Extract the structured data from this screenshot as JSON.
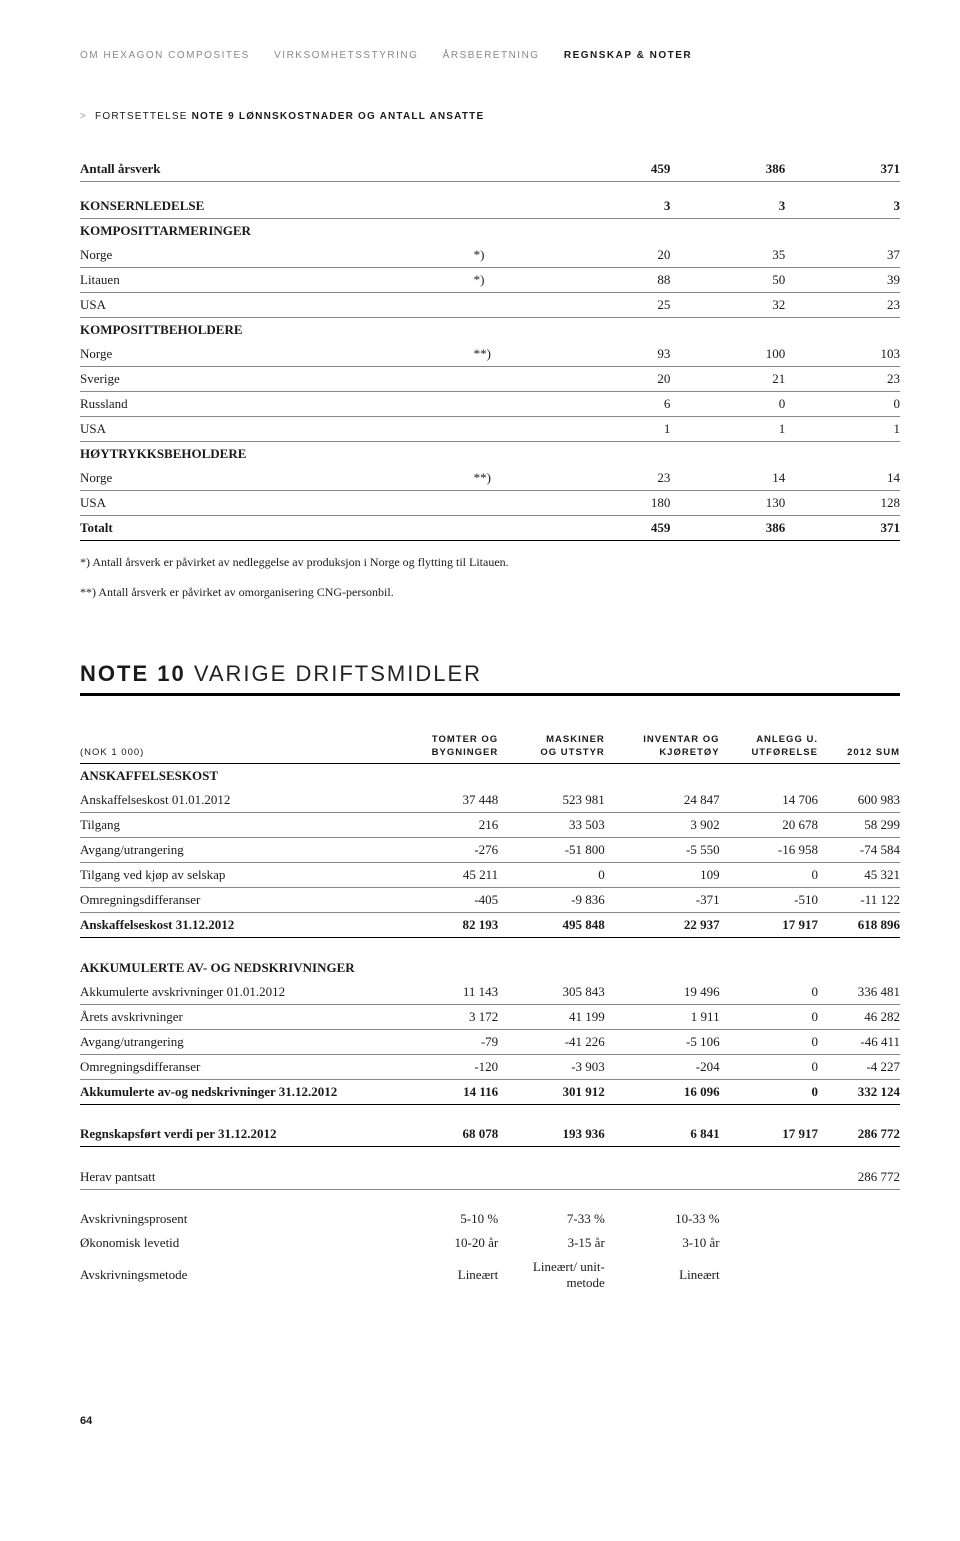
{
  "nav": {
    "items": [
      "OM HEXAGON COMPOSITES",
      "VIRKSOMHETSSTYRING",
      "ÅRSBERETNING",
      "REGNSKAP & NOTER"
    ],
    "active_index": 3
  },
  "continuation": {
    "caret": ">",
    "prefix": "FORTSETTELSE",
    "title": "NOTE 9 LØNNSKOSTNADER OG ANTALL ANSATTE"
  },
  "table1": {
    "rows": [
      {
        "label": "Antall årsverk",
        "mark": "",
        "c1": "459",
        "c2": "386",
        "c3": "371",
        "bold": true
      },
      {
        "gap": true
      },
      {
        "label": "KONSERNLEDELSE",
        "mark": "",
        "c1": "3",
        "c2": "3",
        "c3": "3",
        "bold": true
      },
      {
        "label": "KOMPOSITTARMERINGER",
        "section": true
      },
      {
        "label": "Norge",
        "mark": "*)",
        "c1": "20",
        "c2": "35",
        "c3": "37"
      },
      {
        "label": "Litauen",
        "mark": "*)",
        "c1": "88",
        "c2": "50",
        "c3": "39"
      },
      {
        "label": "USA",
        "mark": "",
        "c1": "25",
        "c2": "32",
        "c3": "23"
      },
      {
        "label": "KOMPOSITTBEHOLDERE",
        "section": true
      },
      {
        "label": "Norge",
        "mark": "**)",
        "c1": "93",
        "c2": "100",
        "c3": "103"
      },
      {
        "label": "Sverige",
        "mark": "",
        "c1": "20",
        "c2": "21",
        "c3": "23"
      },
      {
        "label": "Russland",
        "mark": "",
        "c1": "6",
        "c2": "0",
        "c3": "0"
      },
      {
        "label": "USA",
        "mark": "",
        "c1": "1",
        "c2": "1",
        "c3": "1"
      },
      {
        "label": "HØYTRYKKSBEHOLDERE",
        "section": true
      },
      {
        "label": "Norge",
        "mark": "**)",
        "c1": "23",
        "c2": "14",
        "c3": "14"
      },
      {
        "label": "USA",
        "mark": "",
        "c1": "180",
        "c2": "130",
        "c3": "128"
      },
      {
        "label": "Totalt",
        "mark": "",
        "c1": "459",
        "c2": "386",
        "c3": "371",
        "bold": true,
        "thick": true
      }
    ]
  },
  "footnotes": [
    "*) Antall årsverk er påvirket av nedleggelse av produksjon i Norge og flytting til Litauen.",
    "**) Antall årsverk er påvirket av omorganisering CNG-personbil."
  ],
  "note10": {
    "heading_bold": "NOTE 10",
    "heading_light": "VARIGE DRIFTSMIDLER",
    "unit_label": "(NOK 1 000)",
    "headers": [
      "TOMTER OG BYGNINGER",
      "MASKINER OG UTSTYR",
      "INVENTAR OG KJØRETØY",
      "ANLEGG U. UTFØRELSE",
      "2012 SUM"
    ],
    "rows": [
      {
        "label": "ANSKAFFELSESKOST",
        "section": true
      },
      {
        "label": "Anskaffelseskost 01.01.2012",
        "v": [
          "37 448",
          "523 981",
          "24 847",
          "14 706",
          "600 983"
        ]
      },
      {
        "label": "Tilgang",
        "v": [
          "216",
          "33 503",
          "3 902",
          "20 678",
          "58 299"
        ]
      },
      {
        "label": "Avgang/utrangering",
        "v": [
          "-276",
          "-51 800",
          "-5 550",
          "-16 958",
          "-74 584"
        ]
      },
      {
        "label": "Tilgang ved kjøp av selskap",
        "v": [
          "45 211",
          "0",
          "109",
          "0",
          "45 321"
        ]
      },
      {
        "label": "Omregningsdifferanser",
        "v": [
          "-405",
          "-9 836",
          "-371",
          "-510",
          "-11 122"
        ]
      },
      {
        "label": "Anskaffelseskost 31.12.2012",
        "v": [
          "82 193",
          "495 848",
          "22 937",
          "17 917",
          "618 896"
        ],
        "thick": true
      },
      {
        "gap": true
      },
      {
        "label": "AKKUMULERTE AV- OG NEDSKRIVNINGER",
        "section": true
      },
      {
        "label": "Akkumulerte avskrivninger 01.01.2012",
        "v": [
          "11 143",
          "305 843",
          "19 496",
          "0",
          "336 481"
        ]
      },
      {
        "label": "Årets avskrivninger",
        "v": [
          "3 172",
          "41 199",
          "1 911",
          "0",
          "46 282"
        ]
      },
      {
        "label": "Avgang/utrangering",
        "v": [
          "-79",
          "-41 226",
          "-5 106",
          "0",
          "-46 411"
        ]
      },
      {
        "label": "Omregningsdifferanser",
        "v": [
          "-120",
          "-3 903",
          "-204",
          "0",
          "-4 227"
        ]
      },
      {
        "label": "Akkumulerte av-og nedskrivninger 31.12.2012",
        "v": [
          "14 116",
          "301 912",
          "16 096",
          "0",
          "332 124"
        ],
        "thick": true
      },
      {
        "gap": true
      },
      {
        "label": "Regnskapsført verdi per 31.12.2012",
        "v": [
          "68 078",
          "193 936",
          "6 841",
          "17 917",
          "286 772"
        ],
        "thick": true
      },
      {
        "gap": true
      },
      {
        "label": "Herav pantsatt",
        "v": [
          "",
          "",
          "",
          "",
          "286 772"
        ]
      },
      {
        "gap": true
      },
      {
        "label": "Avskrivningsprosent",
        "v": [
          "5-10 %",
          "7-33 %",
          "10-33 %",
          "",
          ""
        ],
        "nob": true
      },
      {
        "label": "Økonomisk levetid",
        "v": [
          "10-20 år",
          "3-15 år",
          "3-10 år",
          "",
          ""
        ],
        "nob": true
      },
      {
        "label": "Avskrivningsmetode",
        "v": [
          "Lineært",
          "Lineært/ unit-metode",
          "Lineært",
          "",
          ""
        ],
        "nob": true
      }
    ]
  },
  "page_number": "64"
}
